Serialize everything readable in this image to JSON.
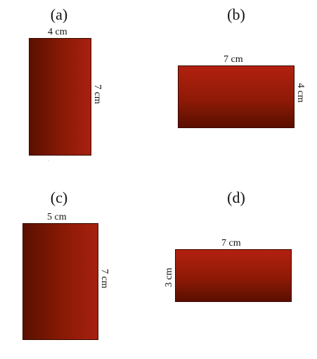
{
  "figures": [
    {
      "label": "(a)",
      "width_label": "4 cm",
      "height_label": "7 cm"
    },
    {
      "label": "(b)",
      "width_label": "7 cm",
      "height_label": "4 cm"
    },
    {
      "label": "(c)",
      "width_label": "5 cm",
      "height_label": "7 cm"
    },
    {
      "label": "(d)",
      "width_label": "7 cm",
      "height_label": "3 cm"
    }
  ]
}
